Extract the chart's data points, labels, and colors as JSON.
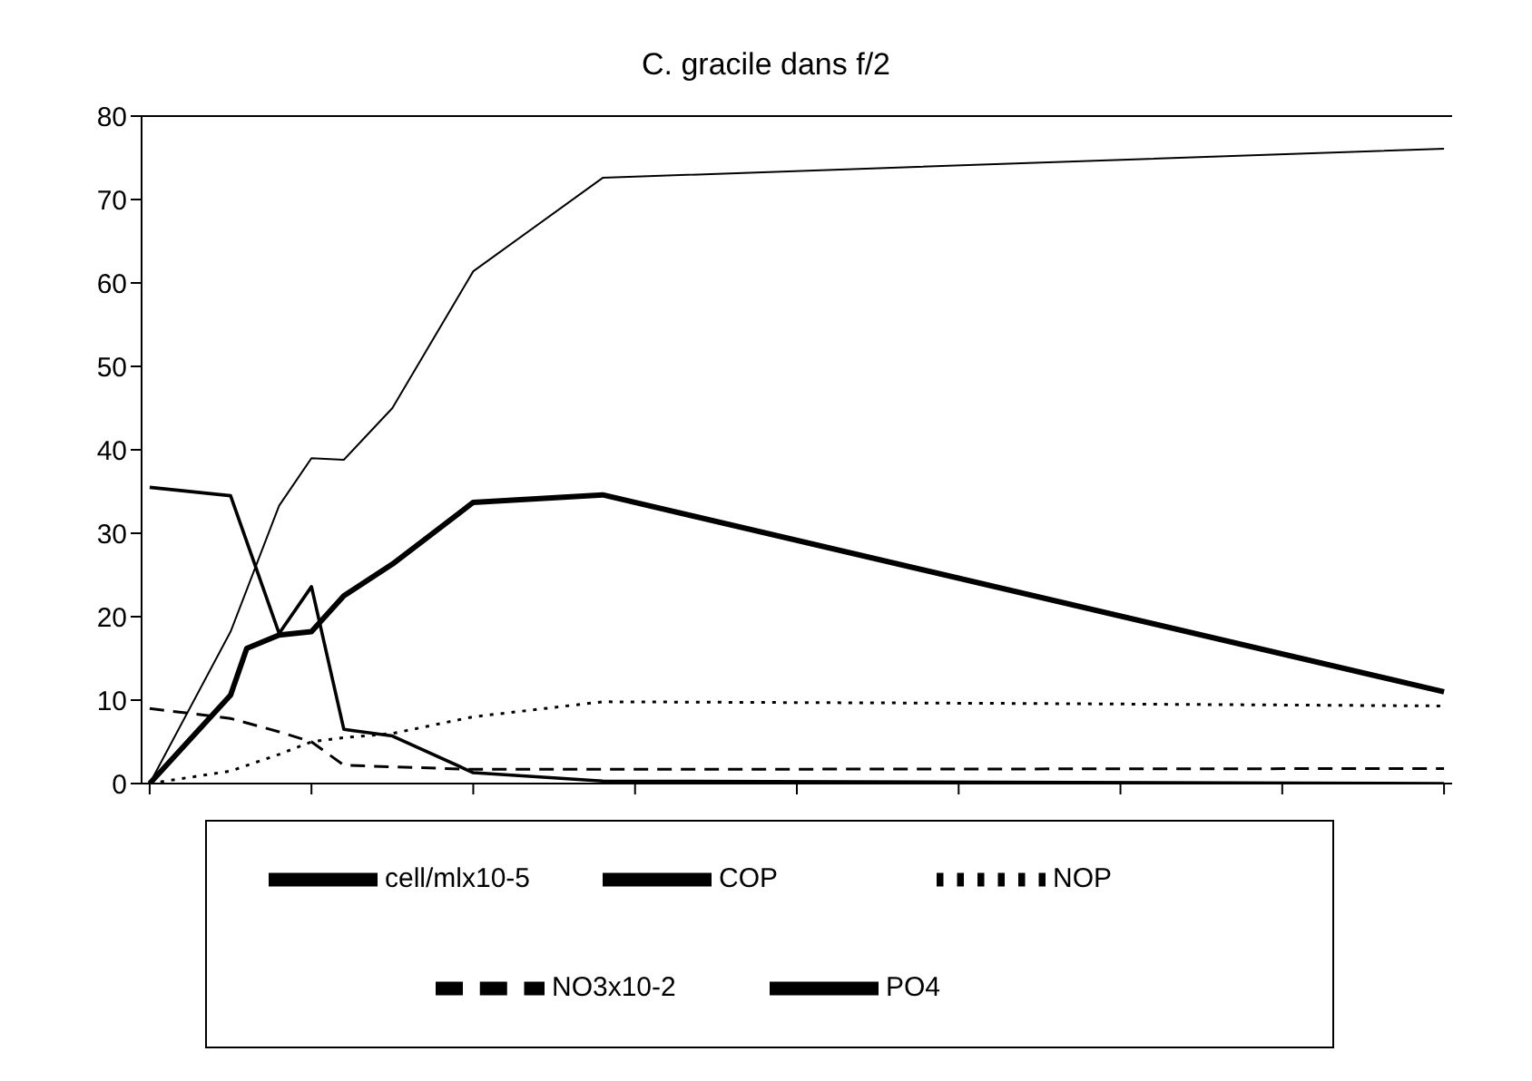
{
  "chart_data": {
    "type": "line",
    "title": "C. gracile dans f/2",
    "categories": [
      null,
      null,
      null,
      null,
      null,
      null,
      null,
      null,
      null,
      null,
      null,
      null,
      null,
      null,
      null,
      null,
      null,
      null,
      null,
      null,
      null,
      null,
      null,
      null,
      null,
      null,
      null,
      null,
      null,
      null,
      null,
      null,
      null,
      null,
      null,
      null,
      null,
      null,
      null,
      null,
      null,
      null,
      null,
      null,
      null,
      null,
      null,
      null,
      null,
      null,
      null,
      null,
      null,
      null,
      null,
      null,
      null,
      null,
      null,
      null,
      null,
      null,
      null,
      null,
      null,
      null,
      null,
      null,
      null,
      null,
      null,
      null,
      null,
      null,
      null,
      null,
      null,
      null,
      null,
      null,
      null
    ],
    "ylim": [
      0,
      80
    ],
    "yticks": [
      0,
      10,
      20,
      30,
      40,
      50,
      60,
      70,
      80
    ],
    "grid": false,
    "legend": "bottom",
    "marker": "none",
    "series": [
      {
        "name": "cell/mlx10-5",
        "color": "#000000",
        "line_style": "solid",
        "values": [
          0,
          null,
          null,
          null,
          null,
          10.6,
          16.2,
          null,
          17.8,
          null,
          18.2,
          null,
          22.5,
          null,
          null,
          26.3,
          null,
          null,
          null,
          null,
          33.7,
          null,
          null,
          null,
          null,
          null,
          null,
          null,
          34.6,
          null,
          null,
          null,
          null,
          null,
          null,
          null,
          null,
          null,
          null,
          null,
          null,
          null,
          null,
          null,
          null,
          null,
          null,
          null,
          null,
          null,
          null,
          null,
          null,
          null,
          null,
          null,
          null,
          null,
          null,
          null,
          null,
          null,
          null,
          null,
          null,
          null,
          null,
          null,
          null,
          null,
          null,
          null,
          null,
          null,
          null,
          null,
          null,
          null,
          null,
          null,
          11
        ]
      },
      {
        "name": "COP",
        "color": "#000000",
        "line_style": "solid",
        "values": [
          0,
          null,
          null,
          null,
          null,
          18.2,
          null,
          null,
          33.3,
          null,
          39,
          null,
          38.8,
          null,
          null,
          45,
          null,
          null,
          null,
          null,
          61.4,
          null,
          null,
          null,
          null,
          null,
          null,
          null,
          72.6,
          null,
          null,
          null,
          null,
          null,
          null,
          null,
          null,
          null,
          null,
          null,
          null,
          null,
          null,
          null,
          null,
          null,
          null,
          null,
          null,
          null,
          null,
          null,
          null,
          null,
          null,
          null,
          null,
          null,
          null,
          null,
          null,
          null,
          null,
          null,
          null,
          null,
          null,
          null,
          null,
          null,
          null,
          null,
          null,
          null,
          null,
          null,
          null,
          null,
          null,
          null,
          76.1
        ]
      },
      {
        "name": "NOP",
        "color": "#000000",
        "line_style": "dotted",
        "values": [
          0,
          null,
          null,
          null,
          null,
          1.5,
          null,
          null,
          3.5,
          null,
          5,
          null,
          5.5,
          null,
          null,
          6,
          null,
          null,
          null,
          null,
          8,
          null,
          null,
          null,
          null,
          null,
          null,
          null,
          9.8,
          null,
          null,
          null,
          null,
          null,
          null,
          null,
          null,
          null,
          null,
          null,
          null,
          null,
          null,
          null,
          null,
          null,
          null,
          null,
          null,
          null,
          null,
          null,
          null,
          null,
          9.6,
          null,
          null,
          null,
          null,
          null,
          null,
          null,
          null,
          null,
          null,
          null,
          null,
          null,
          null,
          null,
          null,
          null,
          null,
          null,
          null,
          null,
          null,
          null,
          null,
          null,
          9.3
        ]
      },
      {
        "name": "NO3x10-2",
        "color": "#000000",
        "line_style": "dashed",
        "values": [
          9,
          null,
          null,
          null,
          null,
          7.8,
          null,
          null,
          6.2,
          null,
          5,
          null,
          2.2,
          null,
          null,
          2,
          null,
          null,
          null,
          null,
          1.7,
          null,
          null,
          null,
          null,
          null,
          null,
          null,
          1.7,
          null,
          null,
          null,
          null,
          null,
          null,
          null,
          null,
          null,
          null,
          null,
          null,
          null,
          null,
          null,
          null,
          null,
          null,
          null,
          null,
          null,
          null,
          null,
          null,
          null,
          null,
          null,
          null,
          null,
          null,
          null,
          null,
          null,
          null,
          null,
          null,
          null,
          null,
          null,
          null,
          null,
          null,
          null,
          null,
          null,
          null,
          null,
          null,
          null,
          null,
          null,
          1.8
        ]
      },
      {
        "name": "PO4",
        "color": "#000000",
        "line_style": "solid",
        "values": [
          35.5,
          null,
          null,
          null,
          null,
          34.5,
          null,
          null,
          18,
          null,
          23.6,
          null,
          6.5,
          null,
          null,
          5.7,
          null,
          null,
          null,
          null,
          1.3,
          null,
          null,
          null,
          null,
          null,
          null,
          null,
          0.3,
          null,
          null,
          null,
          null,
          null,
          null,
          null,
          null,
          null,
          null,
          null,
          null,
          null,
          null,
          null,
          null,
          null,
          null,
          null,
          null,
          null,
          null,
          null,
          null,
          null,
          null,
          null,
          null,
          null,
          null,
          null,
          null,
          null,
          null,
          null,
          null,
          null,
          null,
          null,
          null,
          null,
          null,
          null,
          null,
          null,
          null,
          null,
          null,
          null,
          null,
          null,
          0
        ]
      }
    ]
  }
}
